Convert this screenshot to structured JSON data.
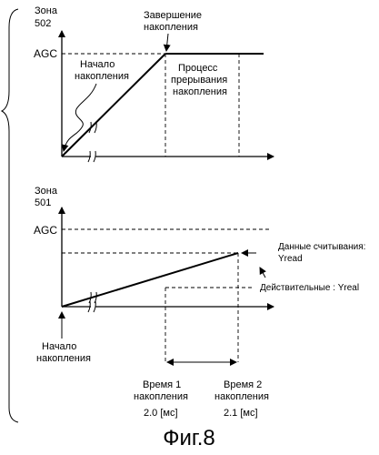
{
  "figure": {
    "caption": "Фиг.8"
  },
  "top_graph": {
    "zone_label_line1": "Зона",
    "zone_label_line2": "502",
    "agc_label": "AGC",
    "end_label_line1": "Завершение",
    "end_label_line2": "накопления",
    "start_label_line1": "Начало",
    "start_label_line2": "накопления",
    "interrupt_label_line1": "Процесс",
    "interrupt_label_line2": "прерывания",
    "interrupt_label_line3": "накопления"
  },
  "bottom_graph": {
    "zone_label_line1": "Зона",
    "zone_label_line2": "501",
    "agc_label": "AGC",
    "read_data_label_line1": "Данные считывания:",
    "read_data_label_line2": "Yread",
    "actual_label": "Действительные : Yreal",
    "start_label_line1": "Начало",
    "start_label_line2": "накопления",
    "time1_label_line1": "Время 1",
    "time1_label_line2": "накопления",
    "time1_value": "2.0 [мс]",
    "time2_label_line1": "Время 2",
    "time2_label_line2": "накопления",
    "time2_value": "2.1 [мс]"
  }
}
